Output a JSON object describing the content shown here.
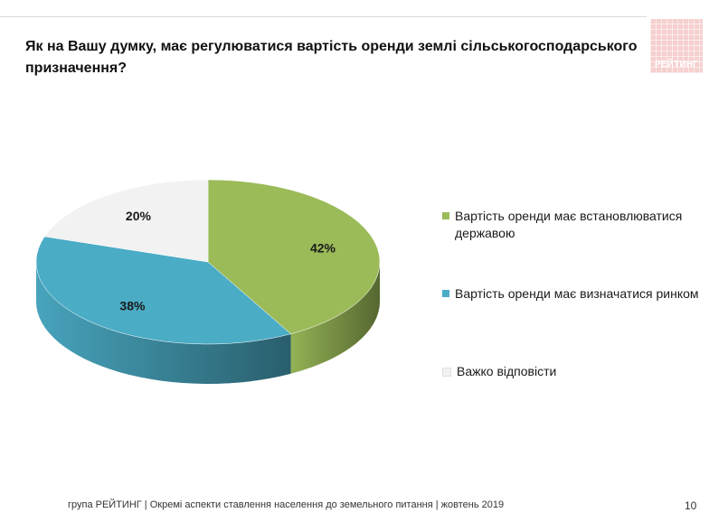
{
  "header": {
    "logo_text": "РЕЙТИНГ"
  },
  "chart_data": {
    "type": "pie",
    "title": "Як на Вашу думку, має регулюватися вартість оренди землі сільськогосподарського призначення?",
    "categories": [
      "Вартість оренди має встановлюватися державою",
      "Вартість оренди має визначатися ринком",
      "Важко відповісти"
    ],
    "values": [
      42,
      38,
      20
    ],
    "data_labels": [
      "42%",
      "38%",
      "20%"
    ],
    "colors": [
      "#9bbb59",
      "#4bacc6",
      "#f2f2f2"
    ],
    "legend_position": "right",
    "style": "3d"
  },
  "footer": {
    "text": "група РЕЙТИНГ | Окремі аспекти ставлення населення до земельного питання | жовтень 2019",
    "page_number": "10"
  }
}
